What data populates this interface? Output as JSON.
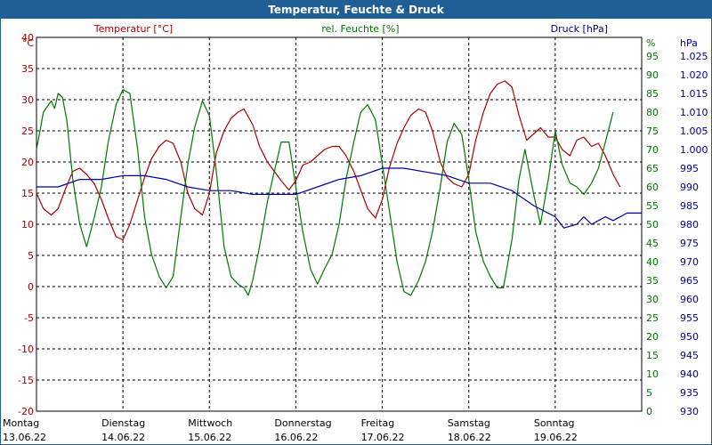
{
  "window": {
    "title": "Temperatur, Feuchte & Druck"
  },
  "chart_data": {
    "type": "line",
    "title": "Temperatur, Feuchte & Druck",
    "grid": true,
    "axes": {
      "temperature": {
        "unit": "°C",
        "range": [
          -20,
          40
        ],
        "ticks": [
          "40",
          "35",
          "30",
          "25",
          "20",
          "15",
          "10",
          "5",
          "0",
          "-5",
          "-10",
          "-15",
          "-20"
        ],
        "color": "#aa0000"
      },
      "humidity": {
        "unit": "%",
        "range": [
          0,
          100
        ],
        "ticks": [
          "95",
          "90",
          "85",
          "80",
          "75",
          "70",
          "65",
          "60",
          "55",
          "50",
          "45",
          "40",
          "35",
          "30",
          "25",
          "20",
          "15",
          "10",
          "5",
          "0"
        ],
        "color": "#007700"
      },
      "pressure": {
        "unit": "hPa",
        "range": [
          930,
          1030
        ],
        "ticks": [
          "1.025",
          "1.020",
          "1.015",
          "1.010",
          "1.005",
          "1.000",
          "995",
          "990",
          "985",
          "980",
          "975",
          "970",
          "965",
          "960",
          "955",
          "950",
          "945",
          "940",
          "935",
          "930"
        ],
        "color": "#000099"
      }
    },
    "x_ticks": [
      {
        "day": "Montag",
        "date": "13.06.22"
      },
      {
        "day": "Dienstag",
        "date": "14.06.22"
      },
      {
        "day": "Mittwoch",
        "date": "15.06.22"
      },
      {
        "day": "Donnerstag",
        "date": "16.06.22"
      },
      {
        "day": "Freitag",
        "date": "17.06.22"
      },
      {
        "day": "Samstag",
        "date": "18.06.22"
      },
      {
        "day": "Sonntag",
        "date": "19.06.22"
      }
    ],
    "x_range_days": [
      0,
      7
    ],
    "series": [
      {
        "name": "Temperatur [°C]",
        "axis": "temperature",
        "color": "#aa0000",
        "points": [
          [
            0,
            15
          ],
          [
            0.08,
            12.5
          ],
          [
            0.17,
            11.5
          ],
          [
            0.25,
            12.5
          ],
          [
            0.33,
            15.5
          ],
          [
            0.42,
            18.5
          ],
          [
            0.5,
            19
          ],
          [
            0.58,
            18
          ],
          [
            0.67,
            16.5
          ],
          [
            0.75,
            14
          ],
          [
            0.83,
            11
          ],
          [
            0.92,
            8
          ],
          [
            1.0,
            7.5
          ],
          [
            1.08,
            10
          ],
          [
            1.17,
            14
          ],
          [
            1.25,
            17.5
          ],
          [
            1.33,
            20.5
          ],
          [
            1.42,
            22.5
          ],
          [
            1.5,
            23.5
          ],
          [
            1.58,
            23
          ],
          [
            1.67,
            20
          ],
          [
            1.75,
            15
          ],
          [
            1.83,
            12.5
          ],
          [
            1.92,
            11.5
          ],
          [
            2.0,
            15
          ],
          [
            2.08,
            21.5
          ],
          [
            2.17,
            25
          ],
          [
            2.25,
            27
          ],
          [
            2.33,
            28
          ],
          [
            2.4,
            28.5
          ],
          [
            2.5,
            26
          ],
          [
            2.58,
            22.5
          ],
          [
            2.67,
            20
          ],
          [
            2.75,
            18.5
          ],
          [
            2.83,
            17
          ],
          [
            2.92,
            15.5
          ],
          [
            3.0,
            17
          ],
          [
            3.08,
            19.5
          ],
          [
            3.17,
            20
          ],
          [
            3.25,
            21
          ],
          [
            3.33,
            22
          ],
          [
            3.42,
            22.5
          ],
          [
            3.5,
            22.5
          ],
          [
            3.58,
            21
          ],
          [
            3.67,
            18.5
          ],
          [
            3.75,
            15.5
          ],
          [
            3.83,
            12.5
          ],
          [
            3.92,
            11
          ],
          [
            4.0,
            14
          ],
          [
            4.08,
            19
          ],
          [
            4.17,
            23
          ],
          [
            4.25,
            25.5
          ],
          [
            4.33,
            27.5
          ],
          [
            4.42,
            28.5
          ],
          [
            4.5,
            28
          ],
          [
            4.58,
            25
          ],
          [
            4.67,
            20
          ],
          [
            4.75,
            17.5
          ],
          [
            4.83,
            16.5
          ],
          [
            4.92,
            16
          ],
          [
            5.0,
            18
          ],
          [
            5.08,
            23.5
          ],
          [
            5.17,
            28
          ],
          [
            5.25,
            31
          ],
          [
            5.33,
            32.5
          ],
          [
            5.42,
            33
          ],
          [
            5.5,
            32
          ],
          [
            5.58,
            27.5
          ],
          [
            5.67,
            23.5
          ],
          [
            5.75,
            24.5
          ],
          [
            5.83,
            25.5
          ],
          [
            5.92,
            24
          ],
          [
            6.0,
            24
          ],
          [
            6.08,
            22
          ],
          [
            6.17,
            21
          ],
          [
            6.25,
            23.5
          ],
          [
            6.33,
            24
          ],
          [
            6.42,
            22.5
          ],
          [
            6.5,
            23
          ],
          [
            6.58,
            21
          ],
          [
            6.67,
            18
          ],
          [
            6.75,
            16
          ]
        ]
      },
      {
        "name": "rel. Feuchte [%]",
        "axis": "humidity",
        "color": "#007700",
        "points": [
          [
            0,
            70
          ],
          [
            0.08,
            80
          ],
          [
            0.17,
            83
          ],
          [
            0.21,
            81
          ],
          [
            0.25,
            85
          ],
          [
            0.3,
            84
          ],
          [
            0.35,
            78
          ],
          [
            0.42,
            62
          ],
          [
            0.5,
            50
          ],
          [
            0.58,
            44
          ],
          [
            0.67,
            52
          ],
          [
            0.75,
            60
          ],
          [
            0.83,
            72
          ],
          [
            0.92,
            82
          ],
          [
            1.0,
            86
          ],
          [
            1.08,
            85
          ],
          [
            1.17,
            70
          ],
          [
            1.25,
            52
          ],
          [
            1.33,
            42
          ],
          [
            1.42,
            36
          ],
          [
            1.5,
            33
          ],
          [
            1.58,
            36
          ],
          [
            1.67,
            52
          ],
          [
            1.75,
            66
          ],
          [
            1.83,
            76
          ],
          [
            1.92,
            83
          ],
          [
            2.0,
            79
          ],
          [
            2.08,
            64
          ],
          [
            2.17,
            44
          ],
          [
            2.25,
            36
          ],
          [
            2.33,
            34
          ],
          [
            2.4,
            33
          ],
          [
            2.45,
            31
          ],
          [
            2.5,
            35
          ],
          [
            2.58,
            44
          ],
          [
            2.67,
            56
          ],
          [
            2.75,
            64
          ],
          [
            2.83,
            72
          ],
          [
            2.92,
            72
          ],
          [
            3.0,
            60
          ],
          [
            3.08,
            48
          ],
          [
            3.17,
            38
          ],
          [
            3.25,
            34
          ],
          [
            3.33,
            38
          ],
          [
            3.42,
            42
          ],
          [
            3.5,
            50
          ],
          [
            3.58,
            62
          ],
          [
            3.67,
            72
          ],
          [
            3.75,
            80
          ],
          [
            3.83,
            82
          ],
          [
            3.92,
            78
          ],
          [
            4.0,
            66
          ],
          [
            4.08,
            54
          ],
          [
            4.17,
            40
          ],
          [
            4.25,
            32
          ],
          [
            4.33,
            31
          ],
          [
            4.42,
            35
          ],
          [
            4.5,
            40
          ],
          [
            4.58,
            48
          ],
          [
            4.67,
            60
          ],
          [
            4.75,
            72
          ],
          [
            4.83,
            77
          ],
          [
            4.92,
            74
          ],
          [
            5.0,
            62
          ],
          [
            5.08,
            48
          ],
          [
            5.17,
            40
          ],
          [
            5.25,
            36
          ],
          [
            5.33,
            33
          ],
          [
            5.4,
            33
          ],
          [
            5.5,
            46
          ],
          [
            5.58,
            62
          ],
          [
            5.65,
            70
          ],
          [
            5.75,
            58
          ],
          [
            5.83,
            50
          ],
          [
            5.92,
            62
          ],
          [
            6.0,
            75
          ],
          [
            6.08,
            66
          ],
          [
            6.17,
            61
          ],
          [
            6.25,
            60
          ],
          [
            6.33,
            58
          ],
          [
            6.42,
            61
          ],
          [
            6.5,
            65
          ],
          [
            6.58,
            72
          ],
          [
            6.67,
            80
          ]
        ]
      },
      {
        "name": "Druck [hPa]",
        "axis": "pressure",
        "color": "#000099",
        "points": [
          [
            0,
            990
          ],
          [
            0.25,
            990
          ],
          [
            0.5,
            992
          ],
          [
            0.75,
            992
          ],
          [
            1.0,
            993
          ],
          [
            1.25,
            993
          ],
          [
            1.5,
            992
          ],
          [
            1.75,
            990
          ],
          [
            2.0,
            989
          ],
          [
            2.25,
            989
          ],
          [
            2.5,
            988
          ],
          [
            2.75,
            988
          ],
          [
            3.0,
            988
          ],
          [
            3.25,
            990
          ],
          [
            3.5,
            992
          ],
          [
            3.75,
            993
          ],
          [
            4.0,
            995
          ],
          [
            4.25,
            995
          ],
          [
            4.5,
            994
          ],
          [
            4.75,
            993
          ],
          [
            5.0,
            991
          ],
          [
            5.25,
            991
          ],
          [
            5.5,
            989
          ],
          [
            5.75,
            985
          ],
          [
            6.0,
            982
          ],
          [
            6.1,
            979
          ],
          [
            6.25,
            980
          ],
          [
            6.33,
            982
          ],
          [
            6.42,
            980
          ],
          [
            6.5,
            981
          ],
          [
            6.58,
            982
          ],
          [
            6.67,
            981
          ],
          [
            6.75,
            982
          ],
          [
            6.83,
            983
          ],
          [
            6.92,
            983
          ],
          [
            7.0,
            983
          ]
        ]
      }
    ]
  }
}
